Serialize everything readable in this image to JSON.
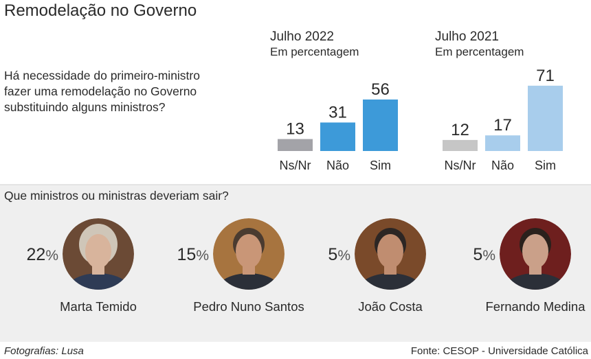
{
  "header": {
    "title": "Remodelação no Governo",
    "question_lines": [
      "Há necessidade do primeiro-ministro",
      "fazer uma remodelação no Governo",
      "substituindo alguns ministros?"
    ]
  },
  "chart_data": [
    {
      "type": "bar",
      "title": "Julho 2022",
      "subtitle": "Em percentagem",
      "categories": [
        "Ns/Nr",
        "Não",
        "Sim"
      ],
      "values": [
        13,
        31,
        56
      ],
      "colors": [
        "#a3a3a8",
        "#3d9ad9",
        "#3d9ad9"
      ]
    },
    {
      "type": "bar",
      "title": "Julho 2021",
      "subtitle": "Em percentagem",
      "categories": [
        "Ns/Nr",
        "Não",
        "Sim"
      ],
      "values": [
        12,
        17,
        71
      ],
      "colors": [
        "#c6c6c6",
        "#a8cdec",
        "#a8cdec"
      ]
    }
  ],
  "ministers": {
    "question": "Que ministros ou ministras deveriam sair?",
    "names": [
      "Marta Temido",
      "Pedro Nuno Santos",
      "João Costa",
      "Fernando Medina"
    ],
    "values": [
      22,
      15,
      5,
      5
    ],
    "unit": "%"
  },
  "footer": {
    "photos": "Fotografias: Lusa",
    "source": "Fonte: CESOP - Universidade Católica"
  }
}
